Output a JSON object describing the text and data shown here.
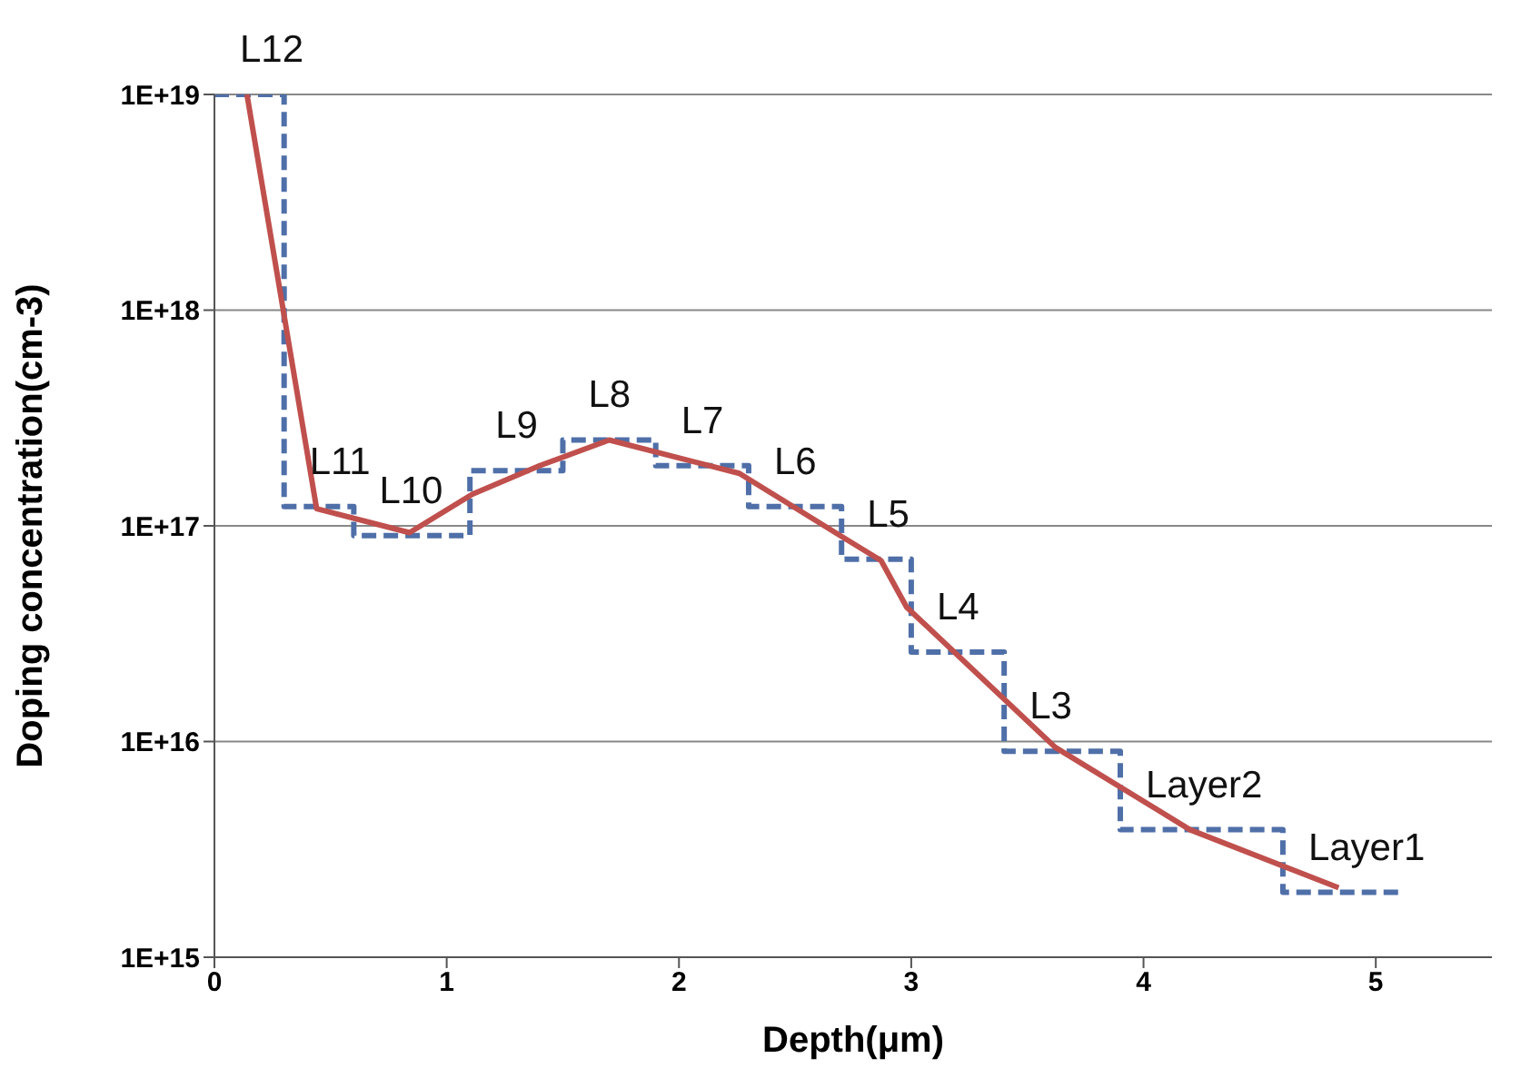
{
  "chart_data": {
    "type": "line",
    "xlabel": "Depth(μm)",
    "ylabel": "Doping concentration(cm-3)",
    "log": "y",
    "grid": "y",
    "legend": false,
    "xlim": [
      0,
      5.5
    ],
    "xticks": [
      0,
      1,
      2,
      3,
      4,
      5
    ],
    "ylim": [
      1000000000000000.0,
      1e+19
    ],
    "yticks": [
      {
        "value": 1000000000000000.0,
        "label": "1E+15"
      },
      {
        "value": 1e+16,
        "label": "1E+16"
      },
      {
        "value": 1e+17,
        "label": "1E+17"
      },
      {
        "value": 1e+18,
        "label": "1E+18"
      },
      {
        "value": 1e+19,
        "label": "1E+19"
      }
    ],
    "series": [
      {
        "type": "step",
        "color": "#4f6fa8",
        "line_style": "dashed",
        "x": [
          0,
          0.3,
          0.6,
          1.1,
          1.5,
          1.9,
          2.3,
          2.7,
          3.0,
          3.4,
          3.9,
          4.6,
          5.1
        ],
        "values": [
          1e+19,
          1.23e+17,
          9e+16,
          1.8e+17,
          2.5e+17,
          1.9e+17,
          1.23e+17,
          7e+16,
          2.6e+16,
          9000000000000000.0,
          3900000000000000.0,
          2000000000000000.0,
          2000000000000000.0
        ]
      },
      {
        "type": "line",
        "color": "#c0504d",
        "line_style": "solid",
        "x": [
          0.14,
          0.44,
          0.84,
          1.11,
          1.4,
          1.7,
          2.26,
          2.71,
          2.87,
          2.98,
          3.62,
          4.2,
          4.84
        ],
        "values": [
          1e+19,
          1.2e+17,
          9.3e+16,
          1.4e+17,
          1.9e+17,
          2.5e+17,
          1.75e+17,
          8.8e+16,
          6.9e+16,
          4.2e+16,
          9400000000000000.0,
          3900000000000000.0,
          2100000000000000.0
        ]
      }
    ],
    "annotations": [
      {
        "text": "L12",
        "x": 0,
        "y": 1e+19
      },
      {
        "text": "L11",
        "x": 0.3,
        "y": 1.23e+17
      },
      {
        "text": "L10",
        "x": 0.6,
        "y": 9e+16
      },
      {
        "text": "L9",
        "x": 1.1,
        "y": 1.8e+17
      },
      {
        "text": "L8",
        "x": 1.5,
        "y": 2.5e+17
      },
      {
        "text": "L7",
        "x": 1.9,
        "y": 1.9e+17
      },
      {
        "text": "L6",
        "x": 2.3,
        "y": 1.23e+17
      },
      {
        "text": "L5",
        "x": 2.7,
        "y": 7e+16
      },
      {
        "text": "L4",
        "x": 3.0,
        "y": 2.6e+16
      },
      {
        "text": "L3",
        "x": 3.4,
        "y": 9000000000000000.0
      },
      {
        "text": "Layer2",
        "x": 3.9,
        "y": 3900000000000000.0
      },
      {
        "text": "Layer1",
        "x": 4.6,
        "y": 2000000000000000.0
      }
    ]
  }
}
